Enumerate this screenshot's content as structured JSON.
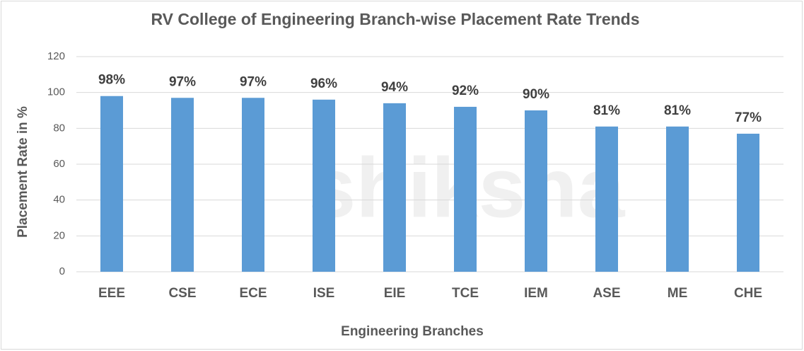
{
  "chart_data": {
    "type": "bar",
    "title": "RV College of Engineering Branch-wise Placement Rate Trends",
    "x_label": "Engineering Branches",
    "y_label": "Placement Rate in %",
    "watermark": "shiksha",
    "categories": [
      "EEE",
      "CSE",
      "ECE",
      "ISE",
      "EIE",
      "TCE",
      "IEM",
      "ASE",
      "ME",
      "CHE"
    ],
    "values": [
      98,
      97,
      97,
      96,
      94,
      92,
      90,
      81,
      81,
      77
    ],
    "value_labels": [
      "98%",
      "97%",
      "97%",
      "96%",
      "94%",
      "92%",
      "90%",
      "81%",
      "81%",
      "77%"
    ],
    "color": "#5b9bd5",
    "ylim": [
      0,
      120
    ],
    "yticks": [
      0,
      20,
      40,
      60,
      80,
      100,
      120
    ],
    "grid": true
  }
}
